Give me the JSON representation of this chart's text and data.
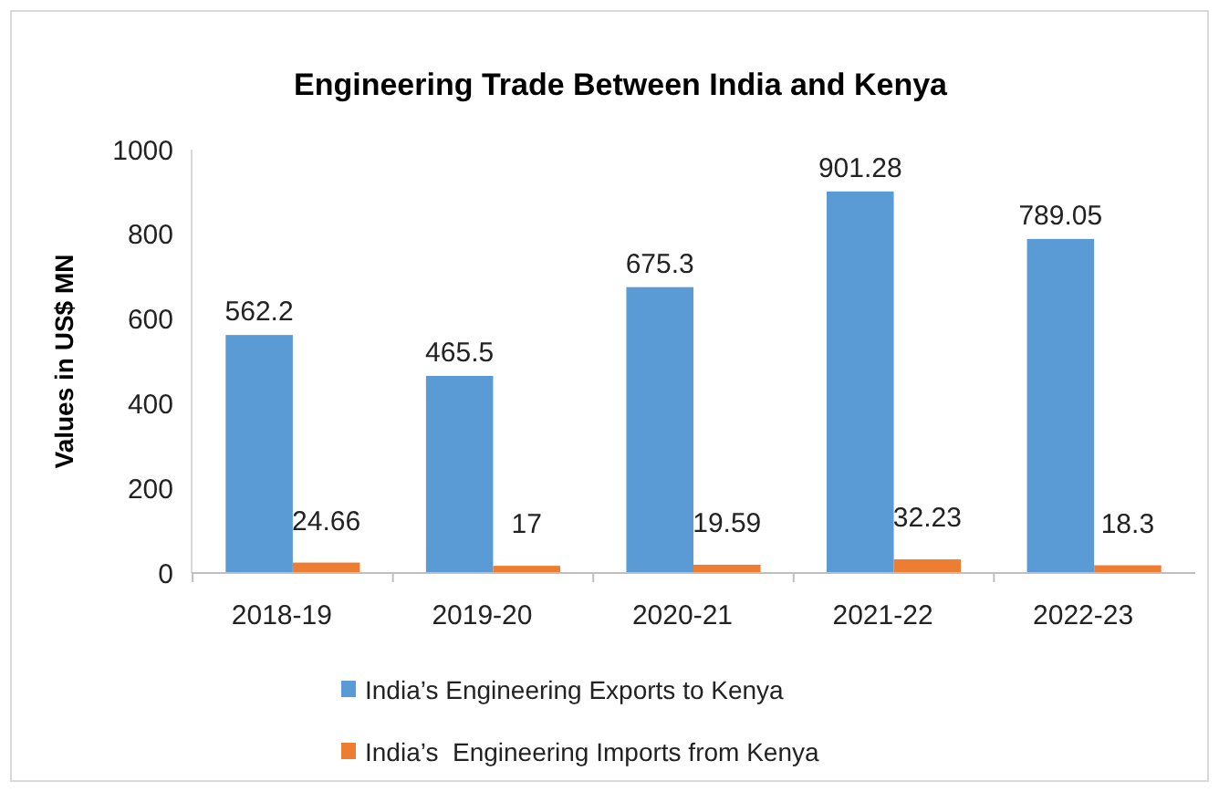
{
  "chart_data": {
    "type": "bar",
    "title": "Engineering Trade Between India and Kenya",
    "ylabel": "Values in US$ MN",
    "categories": [
      "2018-19",
      "2019-20",
      "2020-21",
      "2021-22",
      "2022-23"
    ],
    "series": [
      {
        "name": "India’s Engineering Exports to Kenya",
        "color": "#5b9bd5",
        "values": [
          562.2,
          465.5,
          675.3,
          901.28,
          789.05
        ]
      },
      {
        "name": "India’s  Engineering Imports from Kenya",
        "color": "#ed7d31",
        "values": [
          24.66,
          17,
          19.59,
          32.23,
          18.3
        ]
      }
    ],
    "ylim": [
      0,
      1000
    ],
    "yticks": [
      0,
      200,
      400,
      600,
      800,
      1000
    ],
    "data_labels": true,
    "legend": "bottom",
    "grid": false
  }
}
